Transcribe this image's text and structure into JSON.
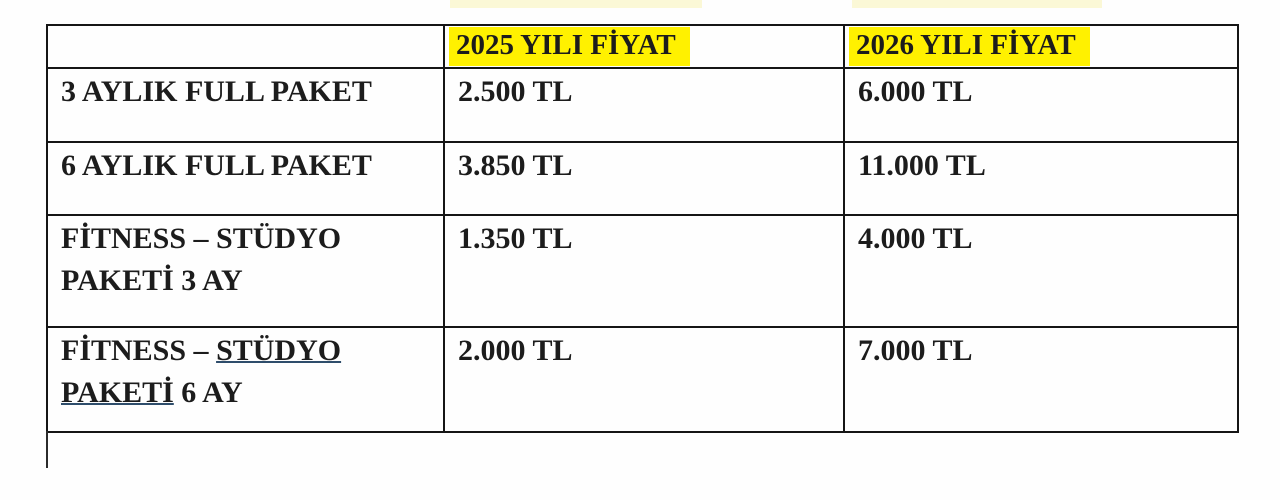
{
  "table": {
    "highlight_color": "#fff100",
    "headers": [
      {
        "text": ""
      },
      {
        "text": "2025 YILI FİYAT",
        "highlighted": true
      },
      {
        "text": "2026 YILI FİYAT",
        "highlighted": true
      }
    ],
    "rows": [
      {
        "package": [
          {
            "text": "3 AYLIK FULL PAKET"
          }
        ],
        "price_2025": "2.500 TL",
        "price_2026": "6.000 TL"
      },
      {
        "package": [
          {
            "text": "6 AYLIK FULL PAKET"
          }
        ],
        "price_2025": "3.850 TL",
        "price_2026": "11.000 TL"
      },
      {
        "package": [
          {
            "text": "FİTNESS – STÜDYO PAKETİ 3 AY"
          }
        ],
        "price_2025": "1.350 TL",
        "price_2026": "4.000 TL"
      },
      {
        "package": [
          {
            "text": "FİTNESS – "
          },
          {
            "text": "STÜDYO PAKETİ",
            "underline": true
          },
          {
            "text": " 6 AY"
          }
        ],
        "price_2025": "2.000 TL",
        "price_2026": "7.000 TL"
      }
    ]
  },
  "artifacts": {
    "top_strips": [
      {
        "color": "#fbf8d6"
      },
      {
        "color": "#fbf8d6"
      }
    ]
  }
}
